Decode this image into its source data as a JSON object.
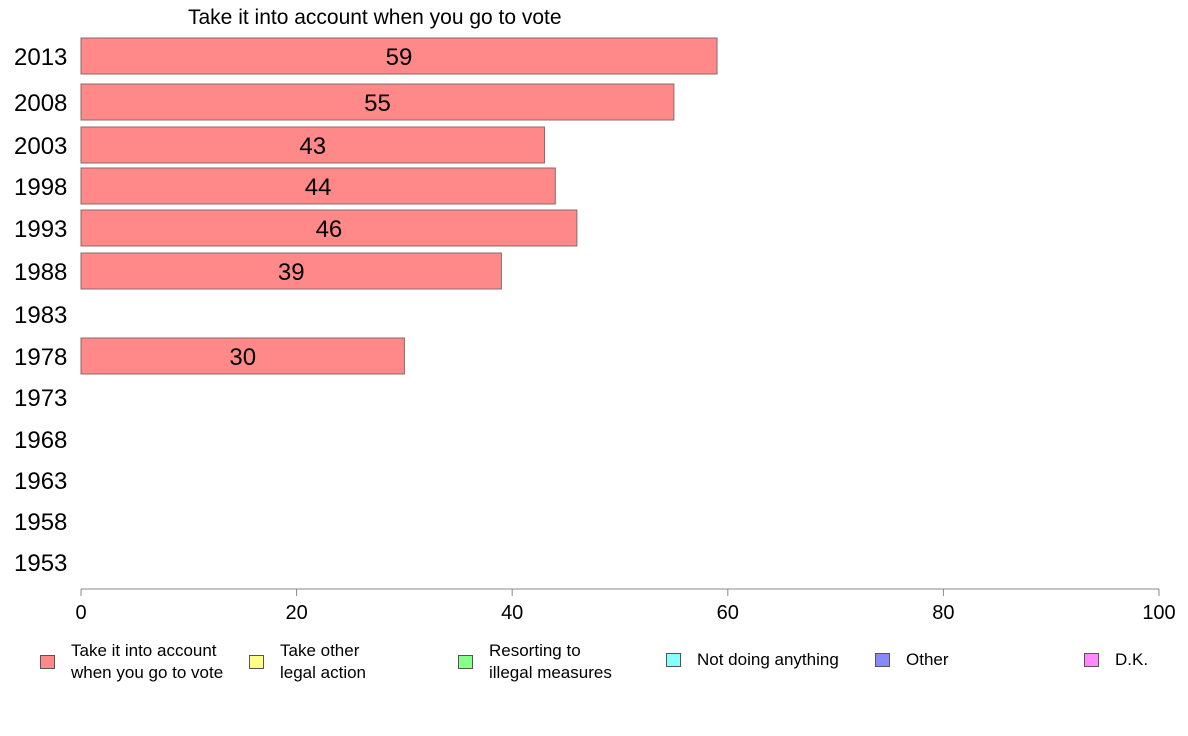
{
  "chart_data": {
    "type": "bar",
    "orientation": "horizontal",
    "title": "Take it into account when you go to vote",
    "categories": [
      "2013",
      "2008",
      "2003",
      "1998",
      "1993",
      "1988",
      "1983",
      "1978",
      "1973",
      "1968",
      "1963",
      "1958",
      "1953"
    ],
    "series": [
      {
        "name": "Take it into account\nwhen you go to vote",
        "color": "#ff8888",
        "values": [
          59,
          55,
          43,
          44,
          46,
          39,
          null,
          30,
          null,
          null,
          null,
          null,
          null
        ]
      }
    ],
    "xlim": [
      0,
      100
    ],
    "xticks": [
      "0",
      "20",
      "40",
      "60",
      "80",
      "100"
    ],
    "grid": false,
    "legend_position": "bottom",
    "legend": [
      {
        "label": "Take it into account\nwhen you go to vote",
        "color": "#ff8888"
      },
      {
        "label": "Take other\nlegal action",
        "color": "#ffff88"
      },
      {
        "label": "Resorting to\nillegal measures",
        "color": "#88ff88"
      },
      {
        "label": "Not doing anything",
        "color": "#88ffff"
      },
      {
        "label": "Other",
        "color": "#8888ff"
      },
      {
        "label": "D.K.",
        "color": "#ff88ff"
      }
    ]
  }
}
